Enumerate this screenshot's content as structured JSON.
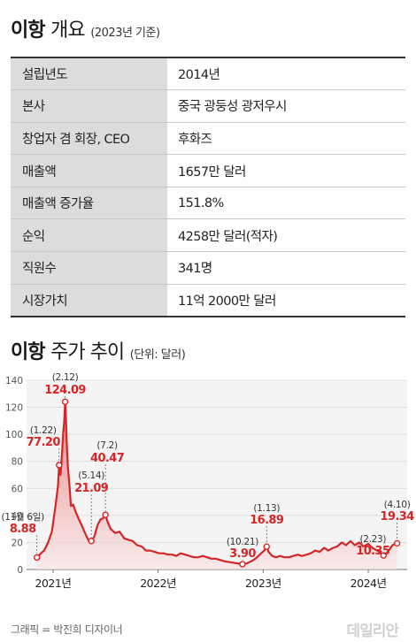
{
  "overview": {
    "title_bold": "이항",
    "title_light": "개요",
    "subtitle": "(2023년 기준)",
    "rows": [
      {
        "label": "설립년도",
        "value": "2014년"
      },
      {
        "label": "본사",
        "value": "중국 광둥성 광저우시"
      },
      {
        "label": "창업자 겸 회장, CEO",
        "value": "후화즈"
      },
      {
        "label": "매출액",
        "value": "1657만 달러"
      },
      {
        "label": "매출액 증가율",
        "value": "151.8%"
      },
      {
        "label": "순익",
        "value": "4258만 달러(적자)"
      },
      {
        "label": "직원수",
        "value": "341명"
      },
      {
        "label": "시장가치",
        "value": "11억 2000만 달러"
      }
    ]
  },
  "chart_header": {
    "title_bold": "이항",
    "title_light": "주가 추이",
    "subtitle": "(단위: 달러)"
  },
  "chart_data": {
    "type": "area",
    "ylim": [
      0,
      140
    ],
    "yticks": [
      0,
      20,
      40,
      60,
      80,
      100,
      120,
      140
    ],
    "xlim": [
      "2020-10-01",
      "2024-05-15"
    ],
    "xticks": [
      {
        "date": "2021-01-01",
        "label": "2021년"
      },
      {
        "date": "2022-01-01",
        "label": "2022년"
      },
      {
        "date": "2023-01-01",
        "label": "2023년"
      },
      {
        "date": "2024-01-01",
        "label": "2024년"
      }
    ],
    "grid": true,
    "line_color": "#d32626",
    "fill_color": "#f3b9b9",
    "series": [
      {
        "points": [
          [
            "2020-11-06",
            8.88
          ],
          [
            "2020-11-20",
            12
          ],
          [
            "2020-12-01",
            14
          ],
          [
            "2020-12-15",
            20
          ],
          [
            "2020-12-28",
            28
          ],
          [
            "2021-01-10",
            48
          ],
          [
            "2021-01-18",
            62
          ],
          [
            "2021-01-22",
            77.2
          ],
          [
            "2021-01-27",
            70
          ],
          [
            "2021-02-01",
            85
          ],
          [
            "2021-02-05",
            100
          ],
          [
            "2021-02-09",
            110
          ],
          [
            "2021-02-12",
            124.09
          ],
          [
            "2021-02-15",
            110
          ],
          [
            "2021-02-18",
            92
          ],
          [
            "2021-02-22",
            75
          ],
          [
            "2021-02-27",
            62
          ],
          [
            "2021-03-04",
            47
          ],
          [
            "2021-03-12",
            48
          ],
          [
            "2021-03-20",
            43
          ],
          [
            "2021-03-30",
            38
          ],
          [
            "2021-04-10",
            33
          ],
          [
            "2021-04-22",
            27
          ],
          [
            "2021-05-03",
            22
          ],
          [
            "2021-05-14",
            21.09
          ],
          [
            "2021-05-24",
            24
          ],
          [
            "2021-06-05",
            33
          ],
          [
            "2021-06-15",
            37
          ],
          [
            "2021-06-25",
            38
          ],
          [
            "2021-07-02",
            40.47
          ],
          [
            "2021-07-10",
            35
          ],
          [
            "2021-07-20",
            30
          ],
          [
            "2021-08-05",
            27
          ],
          [
            "2021-08-20",
            28
          ],
          [
            "2021-09-05",
            23
          ],
          [
            "2021-09-20",
            22
          ],
          [
            "2021-10-05",
            21
          ],
          [
            "2021-10-20",
            18
          ],
          [
            "2021-11-05",
            17
          ],
          [
            "2021-11-20",
            14
          ],
          [
            "2021-12-05",
            14
          ],
          [
            "2021-12-20",
            13
          ],
          [
            "2022-01-05",
            12
          ],
          [
            "2022-01-20",
            12
          ],
          [
            "2022-02-05",
            11
          ],
          [
            "2022-02-20",
            11
          ],
          [
            "2022-03-05",
            10
          ],
          [
            "2022-03-20",
            12
          ],
          [
            "2022-04-05",
            11
          ],
          [
            "2022-04-20",
            10
          ],
          [
            "2022-05-05",
            9
          ],
          [
            "2022-05-20",
            9
          ],
          [
            "2022-06-05",
            10
          ],
          [
            "2022-06-20",
            9
          ],
          [
            "2022-07-05",
            8
          ],
          [
            "2022-07-20",
            8
          ],
          [
            "2022-08-05",
            7
          ],
          [
            "2022-08-20",
            6
          ],
          [
            "2022-09-05",
            5.5
          ],
          [
            "2022-09-20",
            5
          ],
          [
            "2022-10-05",
            4.5
          ],
          [
            "2022-10-21",
            3.9
          ],
          [
            "2022-11-05",
            4.5
          ],
          [
            "2022-11-20",
            6
          ],
          [
            "2022-12-05",
            8
          ],
          [
            "2022-12-20",
            11
          ],
          [
            "2023-01-05",
            14
          ],
          [
            "2023-01-13",
            16.89
          ],
          [
            "2023-01-20",
            13
          ],
          [
            "2023-02-01",
            10
          ],
          [
            "2023-02-15",
            9
          ],
          [
            "2023-03-01",
            10
          ],
          [
            "2023-03-15",
            9
          ],
          [
            "2023-04-01",
            9
          ],
          [
            "2023-04-15",
            10
          ],
          [
            "2023-05-01",
            11
          ],
          [
            "2023-05-15",
            10
          ],
          [
            "2023-06-01",
            11
          ],
          [
            "2023-06-15",
            12
          ],
          [
            "2023-07-01",
            14
          ],
          [
            "2023-07-15",
            13
          ],
          [
            "2023-08-01",
            16
          ],
          [
            "2023-08-15",
            14
          ],
          [
            "2023-09-01",
            16
          ],
          [
            "2023-09-15",
            17
          ],
          [
            "2023-10-01",
            20
          ],
          [
            "2023-10-15",
            18
          ],
          [
            "2023-11-01",
            21
          ],
          [
            "2023-11-15",
            18
          ],
          [
            "2023-12-01",
            20
          ],
          [
            "2023-12-15",
            17
          ],
          [
            "2024-01-01",
            19
          ],
          [
            "2024-01-15",
            16
          ],
          [
            "2024-02-01",
            14
          ],
          [
            "2024-02-15",
            12
          ],
          [
            "2024-02-23",
            10.35
          ],
          [
            "2024-03-05",
            12
          ],
          [
            "2024-03-15",
            15
          ],
          [
            "2024-03-25",
            18
          ],
          [
            "2024-04-10",
            19.34
          ]
        ]
      }
    ],
    "annotations": [
      {
        "date": "2020-11-06",
        "value": 8.88,
        "date_label": "(11월 6일)",
        "value_label": "8.88"
      },
      {
        "date": "2021-01-22",
        "value": 77.2,
        "date_label": "(1.22)",
        "value_label": "77.20"
      },
      {
        "date": "2021-02-12",
        "value": 124.09,
        "date_label": "(2.12)",
        "value_label": "124.09"
      },
      {
        "date": "2021-05-14",
        "value": 21.09,
        "date_label": "(5.14)",
        "value_label": "21.09"
      },
      {
        "date": "2021-07-02",
        "value": 40.47,
        "date_label": "(7.2)",
        "value_label": "40.47"
      },
      {
        "date": "2022-10-21",
        "value": 3.9,
        "date_label": "(10.21)",
        "value_label": "3.90"
      },
      {
        "date": "2023-01-13",
        "value": 16.89,
        "date_label": "(1.13)",
        "value_label": "16.89"
      },
      {
        "date": "2024-02-23",
        "value": 10.35,
        "date_label": "(2.23)",
        "value_label": "10.35"
      },
      {
        "date": "2024-04-10",
        "value": 19.34,
        "date_label": "(4.10)",
        "value_label": "19.34"
      }
    ]
  },
  "credit": "그래픽 = 박진희 디자이너",
  "logo": "데일리안"
}
